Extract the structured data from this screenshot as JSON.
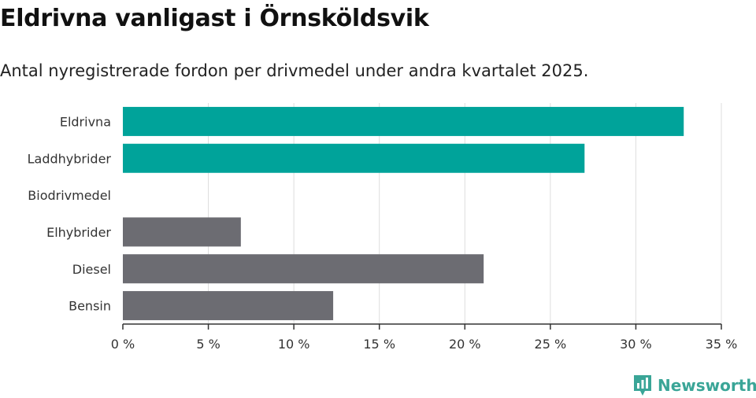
{
  "title": "Eldrivna vanligast i Örnsköldsvik",
  "subtitle": "Antal nyregistrerade fordon per drivmedel under andra kvartalet 2025.",
  "brand": {
    "name": "Newsworthy",
    "icon": "newsworthy-bar-chart-icon",
    "color": "#3aa597"
  },
  "chart_data": {
    "type": "bar",
    "orientation": "horizontal",
    "categories": [
      "Eldrivna",
      "Laddhybrider",
      "Biodrivmedel",
      "Elhybrider",
      "Diesel",
      "Bensin"
    ],
    "values": [
      32.8,
      27.0,
      0,
      6.9,
      21.1,
      12.3
    ],
    "colors": [
      "#00a39a",
      "#00a39a",
      "#00a39a",
      "#6c6c72",
      "#6c6c72",
      "#6c6c72"
    ],
    "xlim": [
      0,
      35
    ],
    "xticks": [
      0,
      5,
      10,
      15,
      20,
      25,
      30,
      35
    ],
    "xtick_labels": [
      "0 %",
      "5 %",
      "10 %",
      "15 %",
      "20 %",
      "25 %",
      "30 %",
      "35 %"
    ],
    "grid": true,
    "xlabel": "",
    "ylabel": ""
  }
}
